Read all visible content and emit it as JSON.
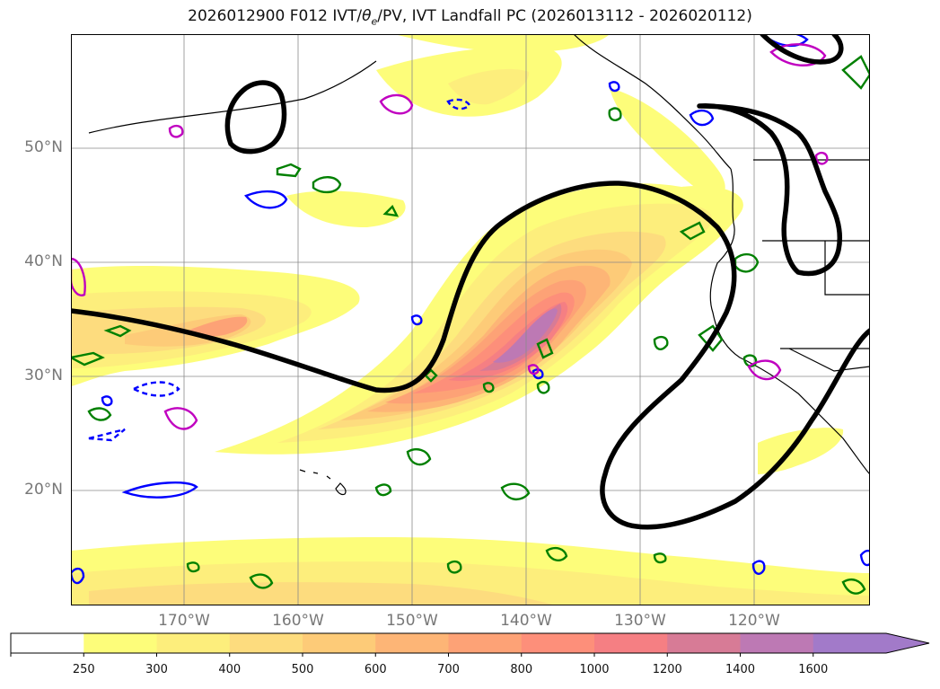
{
  "title": {
    "run": "2026012900 F012 IVT/",
    "theta_symbol": "θ",
    "theta_sub": "e",
    "rest": "/PV, IVT Landfall PC (2026013112 - 2026020112)"
  },
  "lat_labels": [
    "50°N",
    "40°N",
    "30°N",
    "20°N"
  ],
  "lon_labels": [
    "170°W",
    "160°W",
    "150°W",
    "140°W",
    "130°W",
    "120°W"
  ],
  "colorbar": {
    "ticks": [
      "250",
      "300",
      "400",
      "500",
      "600",
      "700",
      "800",
      "1000",
      "1200",
      "1400",
      "1600"
    ],
    "colors": [
      "#ffffff",
      "#fdfd7a",
      "#fdee7c",
      "#fddc7e",
      "#fdcb78",
      "#fdb576",
      "#fda276",
      "#fd8f7a",
      "#f57f83",
      "#d77b96",
      "#bd79b4",
      "#a27ac9"
    ],
    "extend": "max"
  },
  "legend_colors": {
    "ivt_low": "#fdfd7a",
    "ivt_high": "#a27ac9",
    "theta_e": "#008000",
    "pv_positive": "#0000ff",
    "pv_negative": "#c000c0",
    "landfall_pc": "#000000"
  }
}
